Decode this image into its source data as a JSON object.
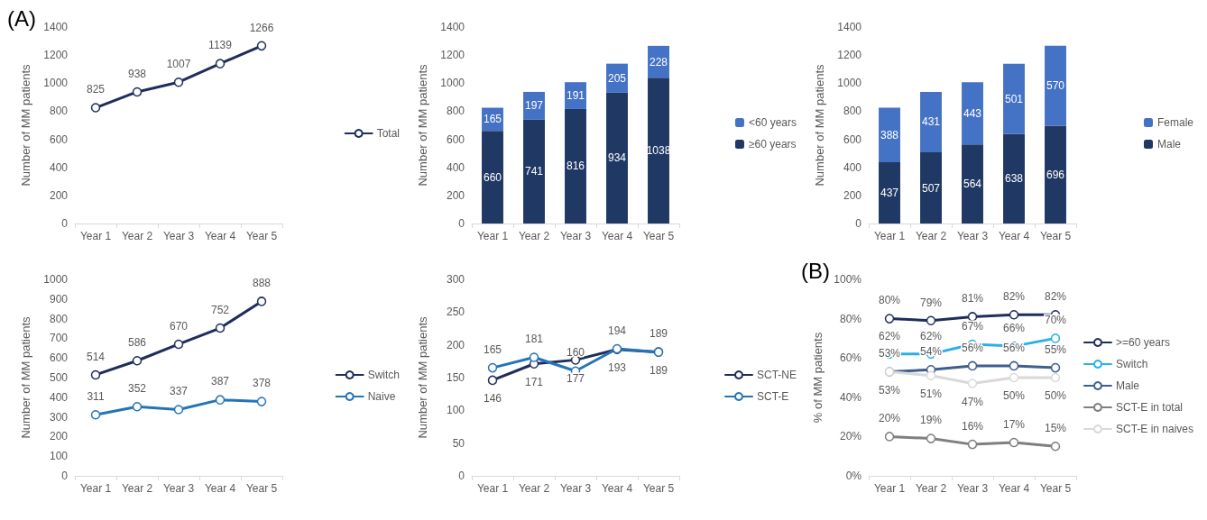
{
  "chart_data": [
    {
      "type": "line",
      "annotations": [
        "(A)"
      ],
      "ylabel": "Number of MM patients",
      "categories": [
        "Year 1",
        "Year 2",
        "Year 3",
        "Year 4",
        "Year 5"
      ],
      "ylim": [
        0,
        1400
      ],
      "yticks": [
        0,
        200,
        400,
        600,
        800,
        1000,
        1200,
        1400
      ],
      "legend": "right",
      "marker": "circle",
      "data_labels": true,
      "series": [
        {
          "name": "Total",
          "color": "#1f2d5c",
          "values": [
            825,
            938,
            1007,
            1139,
            1266
          ]
        }
      ]
    },
    {
      "type": "bar",
      "stacked": true,
      "ylabel": "Number of MM patients",
      "categories": [
        "Year 1",
        "Year 2",
        "Year 3",
        "Year 4",
        "Year 5"
      ],
      "ylim": [
        0,
        1400
      ],
      "yticks": [
        0,
        200,
        400,
        600,
        800,
        1000,
        1200,
        1400
      ],
      "legend": "right",
      "data_labels": true,
      "series": [
        {
          "name": "≥60 years",
          "color": "#1f3864",
          "values": [
            660,
            741,
            816,
            934,
            1038
          ]
        },
        {
          "name": "<60 years",
          "color": "#4472c4",
          "values": [
            165,
            197,
            191,
            205,
            228
          ]
        }
      ]
    },
    {
      "type": "bar",
      "stacked": true,
      "ylabel": "Number of MM patients",
      "categories": [
        "Year 1",
        "Year 2",
        "Year 3",
        "Year 4",
        "Year 5"
      ],
      "ylim": [
        0,
        1400
      ],
      "yticks": [
        0,
        200,
        400,
        600,
        800,
        1000,
        1200,
        1400
      ],
      "legend": "right",
      "data_labels": true,
      "series": [
        {
          "name": "Male",
          "color": "#1f3864",
          "values": [
            437,
            507,
            564,
            638,
            696
          ]
        },
        {
          "name": "Female",
          "color": "#4472c4",
          "values": [
            388,
            431,
            443,
            501,
            570
          ]
        }
      ]
    },
    {
      "type": "line",
      "ylabel": "Number of MM patients",
      "categories": [
        "Year 1",
        "Year 2",
        "Year 3",
        "Year 4",
        "Year 5"
      ],
      "ylim": [
        0,
        1000
      ],
      "yticks": [
        0,
        100,
        200,
        300,
        400,
        500,
        600,
        700,
        800,
        900,
        1000
      ],
      "legend": "right",
      "marker": "circle",
      "data_labels": true,
      "series": [
        {
          "name": "Switch",
          "color": "#1f2d5c",
          "values": [
            514,
            586,
            670,
            752,
            888
          ]
        },
        {
          "name": "Naive",
          "color": "#2474b8",
          "values": [
            311,
            352,
            337,
            387,
            378
          ]
        }
      ]
    },
    {
      "type": "line",
      "ylabel": "Number of MM patients",
      "categories": [
        "Year 1",
        "Year 2",
        "Year 3",
        "Year 4",
        "Year 5"
      ],
      "ylim": [
        0,
        300
      ],
      "yticks": [
        0,
        50,
        100,
        150,
        200,
        250,
        300
      ],
      "legend": "right",
      "marker": "circle",
      "data_labels": true,
      "series": [
        {
          "name": "SCT-NE",
          "color": "#1f2d5c",
          "values": [
            146,
            171,
            177,
            193,
            189
          ]
        },
        {
          "name": "SCT-E",
          "color": "#2474b8",
          "values": [
            165,
            181,
            160,
            194,
            189
          ]
        }
      ]
    },
    {
      "type": "line",
      "annotations": [
        "(B)"
      ],
      "ylabel": "% of MM patients",
      "categories": [
        "Year 1",
        "Year 2",
        "Year 3",
        "Year 4",
        "Year 5"
      ],
      "ylim": [
        0,
        100
      ],
      "yticks": [
        {
          "value": 0,
          "label": "0%"
        },
        {
          "value": 20,
          "label": "20%"
        },
        {
          "value": 40,
          "label": "40%"
        },
        {
          "value": 60,
          "label": "60%"
        },
        {
          "value": 80,
          "label": "80%"
        },
        {
          "value": 100,
          "label": "100%"
        }
      ],
      "legend": "right",
      "marker": "circle",
      "series": [
        {
          "name": ">=60 years",
          "color": "#1f2d5c",
          "values": [
            80,
            79,
            81,
            82,
            82
          ],
          "value_labels": [
            "80%",
            "79%",
            "81%",
            "82%",
            "82%"
          ]
        },
        {
          "name": "Switch",
          "color": "#2bb0e6",
          "values": [
            62,
            62,
            67,
            66,
            70
          ],
          "value_labels": [
            "62%",
            "62%",
            "67%",
            "66%",
            "70%"
          ]
        },
        {
          "name": "Male",
          "color": "#3d5f8f",
          "values": [
            53,
            54,
            56,
            56,
            55
          ],
          "value_labels": [
            "53%",
            "54%",
            "56%",
            "56%",
            "55%"
          ]
        },
        {
          "name": "SCT-E in total",
          "color": "#7f7f7f",
          "values": [
            20,
            19,
            16,
            17,
            15
          ],
          "value_labels": [
            "20%",
            "19%",
            "16%",
            "17%",
            "15%"
          ]
        },
        {
          "name": "SCT-E in naives",
          "color": "#d9d9d9",
          "values": [
            53,
            51,
            47,
            50,
            50
          ],
          "value_labels": [
            "53%",
            "51%",
            "47%",
            "50%",
            "50%"
          ]
        }
      ]
    }
  ]
}
